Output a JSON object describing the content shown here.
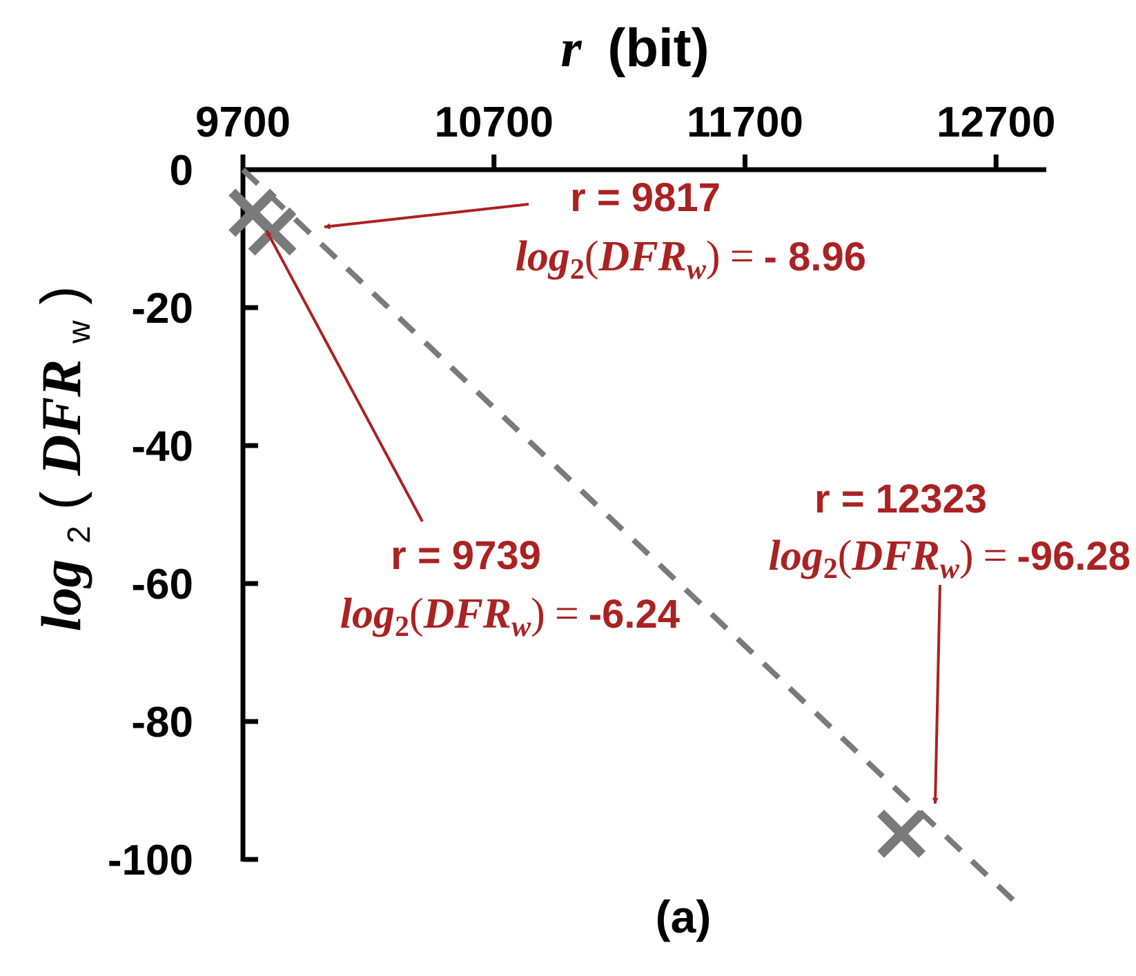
{
  "chart_data": {
    "type": "scatter",
    "title": "",
    "panel_label": "(a)",
    "x_axis": {
      "position": "top",
      "label_var": "r",
      "label_unit": "(bit)",
      "range": [
        9700,
        12900
      ],
      "ticks": [
        9700,
        10700,
        11700,
        12700
      ],
      "tick_labels": [
        "9700",
        "10700",
        "11700",
        "12700"
      ]
    },
    "y_axis": {
      "position": "left",
      "label_func": "log",
      "label_base": "2",
      "label_open": "(",
      "label_arg": "DFR",
      "label_sub": "w",
      "label_close": ")",
      "range": [
        -100,
        0
      ],
      "ticks": [
        0,
        -20,
        -40,
        -60,
        -80,
        -100
      ],
      "tick_labels": [
        "0",
        "-20",
        "-40",
        "-60",
        "-80",
        "-100"
      ]
    },
    "grid": false,
    "points": [
      {
        "x": 9739,
        "y": -6.24
      },
      {
        "x": 9817,
        "y": -8.96
      },
      {
        "x": 12323,
        "y": -96.28
      }
    ],
    "trend_line": {
      "style": "dashed",
      "from": {
        "x": 9700,
        "y": 0
      },
      "to": {
        "x": 12800,
        "y": -107
      }
    },
    "colors": {
      "axis": "#000000",
      "marker": "#7a7a7a",
      "trend_line": "#7a7a7a",
      "annotation": "#aa2222"
    },
    "annotations": [
      {
        "r_text": "r = 9817",
        "dfr_func": "log",
        "dfr_base": "2",
        "dfr_open": "(",
        "dfr_arg": "DFR",
        "dfr_sub": "w",
        "dfr_close": ")",
        "dfr_eq": "=",
        "dfr_value": "- 8.96"
      },
      {
        "r_text": "r = 9739",
        "dfr_func": "log",
        "dfr_base": "2",
        "dfr_open": "(",
        "dfr_arg": "DFR",
        "dfr_sub": "w",
        "dfr_close": ")",
        "dfr_eq": "=",
        "dfr_value": "-6.24"
      },
      {
        "r_text": "r = 12323",
        "dfr_func": "log",
        "dfr_base": "2",
        "dfr_open": "(",
        "dfr_arg": "DFR",
        "dfr_sub": "w",
        "dfr_close": ")",
        "dfr_eq": "=",
        "dfr_value": "-96.28"
      }
    ]
  }
}
